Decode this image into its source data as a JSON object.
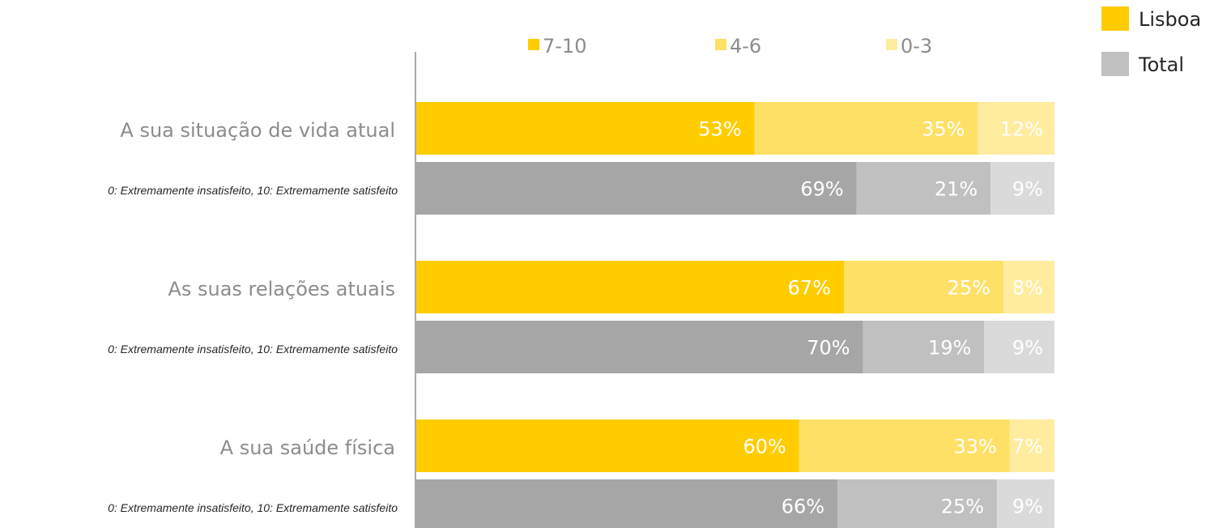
{
  "chart_data": {
    "type": "bar",
    "orientation": "horizontal",
    "stacked": true,
    "percent_stacked": true,
    "segment_legend": [
      "7-10",
      "4-6",
      "0-3"
    ],
    "group_legend": [
      "Lisboa",
      "Total"
    ],
    "categories": [
      {
        "label": "A sua situação de vida atual",
        "sublabel": "0: Extremamente insatisfeito, 10: Extremamente satisfeito",
        "lisboa": [
          53,
          35,
          12
        ],
        "total": [
          69,
          21,
          9
        ]
      },
      {
        "label": "As suas relações atuais",
        "sublabel": "0: Extremamente insatisfeito, 10: Extremamente satisfeito",
        "lisboa": [
          67,
          25,
          8
        ],
        "total": [
          70,
          19,
          9
        ]
      },
      {
        "label": "A sua saúde física",
        "sublabel": "0: Extremamente insatisfeito, 10: Extremamente satisfeito",
        "lisboa": [
          60,
          33,
          7
        ],
        "total": [
          66,
          25,
          9
        ]
      }
    ],
    "value_suffix": "%",
    "xlim": [
      0,
      100
    ],
    "grid": false,
    "colors": {
      "lisboa": [
        "#FFCC00",
        "#FFE066",
        "#FFEC9E"
      ],
      "total": [
        "#A6A6A6",
        "#C0C0C0",
        "#DADADA"
      ],
      "legend_lisboa": "#FFCC00",
      "legend_total": "#C0C0C0",
      "axis": "#8c8c8c"
    }
  }
}
